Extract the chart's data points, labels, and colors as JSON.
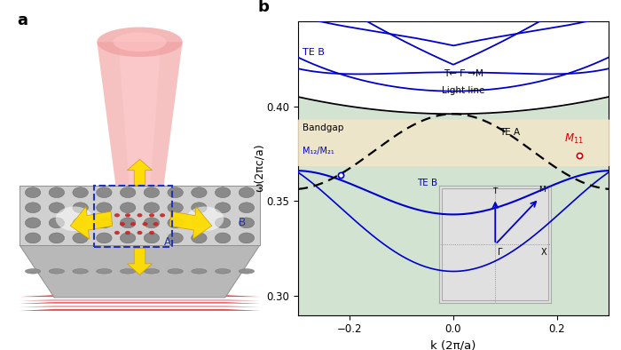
{
  "fig_width": 7.0,
  "fig_height": 3.94,
  "dpi": 100,
  "panel_a_label": "a",
  "panel_b_label": "b",
  "xlim": [
    -0.3,
    0.3
  ],
  "ylim": [
    0.29,
    0.445
  ],
  "yticks": [
    0.3,
    0.35,
    0.4
  ],
  "xticks": [
    -0.2,
    0.0,
    0.2
  ],
  "xlabel": "k (2π/a)",
  "ylabel": "ω(2πc/a)",
  "blue_color": "#0000cc",
  "black_color": "#000000",
  "red_color": "#cc0000",
  "bandgap_color": "#f5e6c8",
  "bandgap_alpha": 0.8,
  "light_cone_color": "#c8ddc8",
  "light_cone_alpha": 0.5,
  "label_TE_B_top": "TE B",
  "label_TE_A": "TE A",
  "label_TE_B_bot": "TE B",
  "label_M12": "M₁₂/M₂₁",
  "label_M11": "M₁₁",
  "label_bandgap": "Bandgap",
  "label_lightline": "Light line",
  "label_path": "T← Γ →M"
}
